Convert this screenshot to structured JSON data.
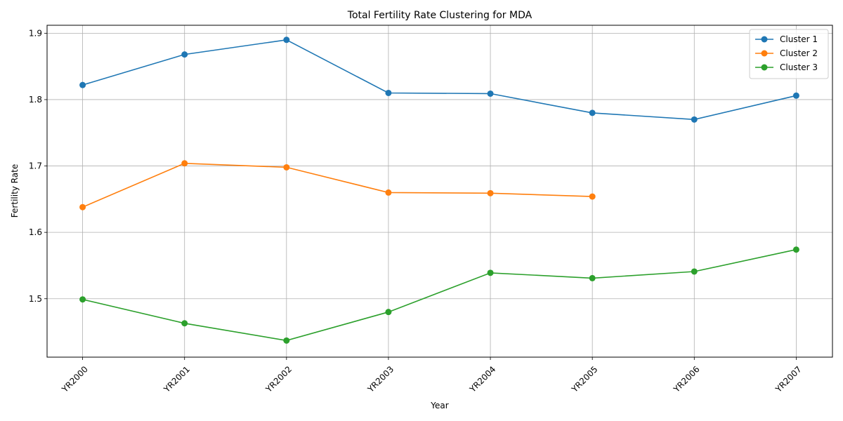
{
  "chart_data": {
    "type": "line",
    "title": "Total Fertility Rate Clustering for MDA",
    "xlabel": "Year",
    "ylabel": "Fertility Rate",
    "categories": [
      "YR2000",
      "YR2001",
      "YR2002",
      "YR2003",
      "YR2004",
      "YR2005",
      "YR2006",
      "YR2007"
    ],
    "ylim": [
      1.412,
      1.912
    ],
    "yticks": [
      1.5,
      1.6,
      1.7,
      1.8,
      1.9
    ],
    "ytick_labels": [
      "1.5",
      "1.6",
      "1.7",
      "1.8",
      "1.9"
    ],
    "grid": true,
    "legend_position": "top-right",
    "series": [
      {
        "name": "Cluster 1",
        "color": "#1f77b4",
        "values": [
          1.822,
          1.868,
          1.89,
          1.81,
          1.809,
          1.78,
          1.77,
          1.806
        ]
      },
      {
        "name": "Cluster 2",
        "color": "#ff7f0e",
        "values": [
          1.638,
          1.704,
          1.698,
          1.66,
          1.659,
          1.654,
          null,
          null
        ]
      },
      {
        "name": "Cluster 3",
        "color": "#2ca02c",
        "values": [
          1.499,
          1.463,
          1.437,
          1.48,
          1.539,
          1.531,
          1.541,
          1.574
        ]
      }
    ]
  }
}
